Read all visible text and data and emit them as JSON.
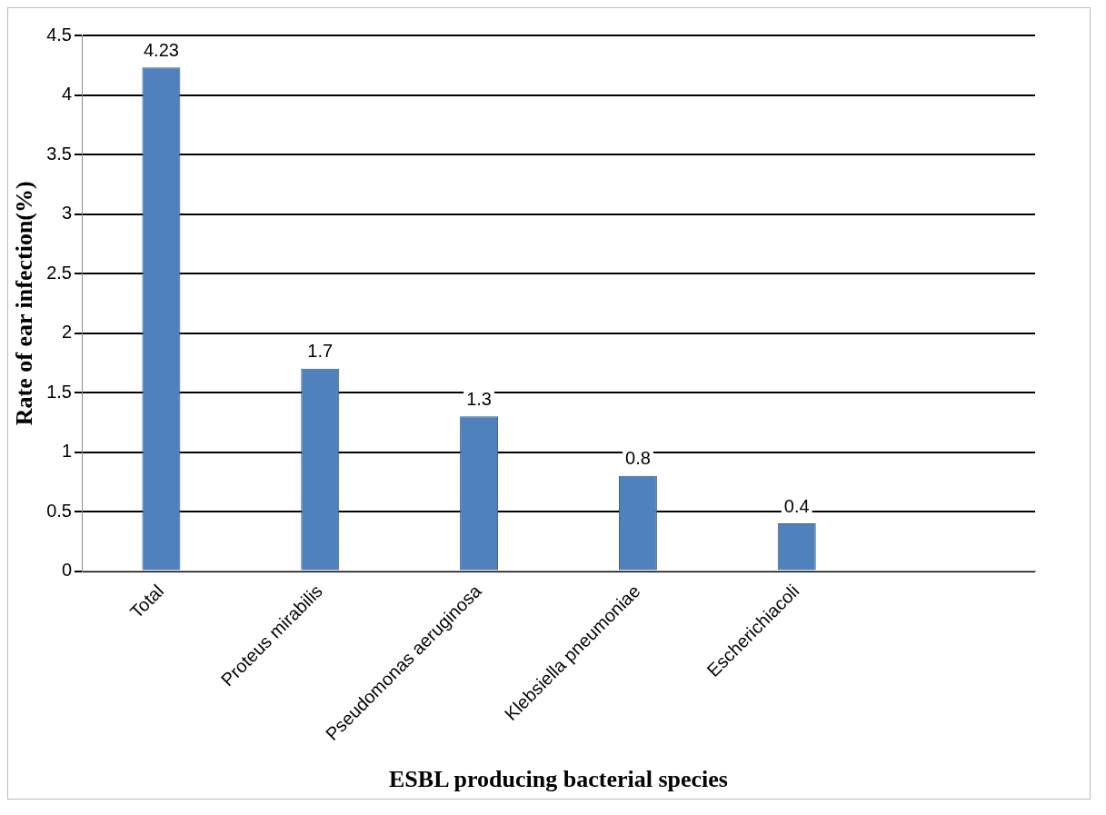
{
  "chart_data": {
    "type": "bar",
    "xlabel": "ESBL producing bacterial species",
    "ylabel": "Rate of ear infection(%)",
    "categories": [
      "Total",
      "Proteus mirabilis",
      "Pseudomonas aeruginosa",
      "Klebsiella pneumoniae",
      "Escherichiacoli",
      null
    ],
    "values": [
      4.23,
      1.7,
      1.3,
      0.8,
      0.4,
      null
    ],
    "color": "#4f81bd",
    "ylim": [
      0,
      4.5
    ],
    "yticks": [
      0,
      0.5,
      1,
      1.5,
      2,
      2.5,
      3,
      3.5,
      4,
      4.5
    ],
    "grid": "y",
    "legend": false,
    "data_labels": true
  }
}
